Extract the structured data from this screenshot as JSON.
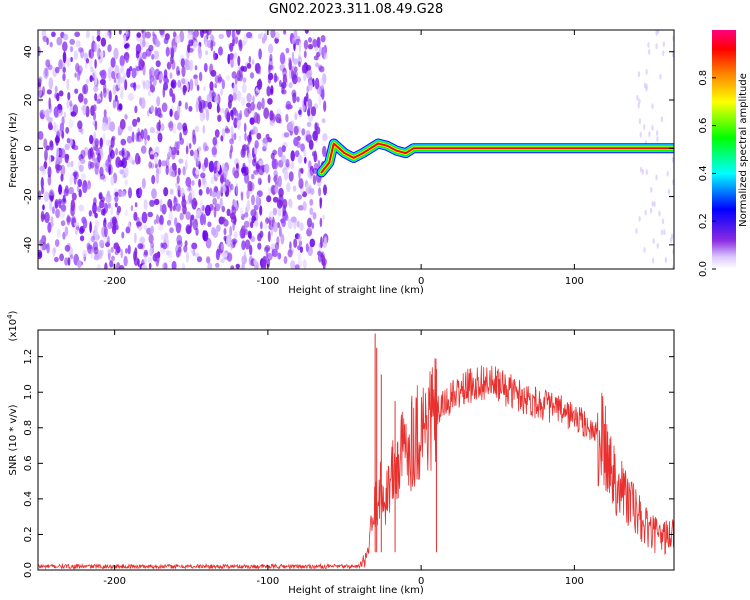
{
  "title": "GN02.2023.311.08.49.G28",
  "chart_data": [
    {
      "type": "heatmap",
      "xlabel": "Height of straight line (km)",
      "ylabel": "Frequency (Hz)",
      "xlim": [
        -250,
        165
      ],
      "ylim": [
        -50,
        49
      ],
      "xticks": [
        -200,
        -100,
        0,
        100
      ],
      "xtick_labels": [
        "-200",
        "-100",
        "0",
        "100"
      ],
      "yticks": [
        -40,
        -20,
        0,
        20,
        40
      ],
      "ytick_labels": [
        "-40",
        "-20",
        "0",
        "20",
        "40"
      ],
      "noise_region_x": [
        -250,
        -62
      ],
      "ridge": [
        {
          "x": -65,
          "y": -10
        },
        {
          "x": -60,
          "y": -6
        },
        {
          "x": -57,
          "y": 2
        },
        {
          "x": -50,
          "y": -2
        },
        {
          "x": -44,
          "y": -4
        },
        {
          "x": -38,
          "y": -2
        },
        {
          "x": -33,
          "y": 0
        },
        {
          "x": -28,
          "y": 2
        },
        {
          "x": -22,
          "y": 1
        },
        {
          "x": -16,
          "y": -1
        },
        {
          "x": -10,
          "y": -2
        },
        {
          "x": -5,
          "y": 0
        },
        {
          "x": 0,
          "y": 0
        },
        {
          "x": 60,
          "y": 0
        },
        {
          "x": 120,
          "y": 0
        },
        {
          "x": 165,
          "y": 0
        }
      ],
      "colorbar": {
        "label": "Normalized spectral amplitude",
        "range": [
          0,
          1
        ],
        "ticks": [
          0.0,
          0.2,
          0.4,
          0.6,
          0.8
        ],
        "tick_labels": [
          "0.0",
          "0.2",
          "0.4",
          "0.6",
          "0.8"
        ],
        "colors": [
          "#ffffff",
          "#dcc8ff",
          "#8a2be2",
          "#0000ff",
          "#00ffff",
          "#00ff00",
          "#ffff00",
          "#ff8000",
          "#ff0000",
          "#ff0080"
        ]
      }
    },
    {
      "type": "line",
      "xlabel": "Height of straight line (km)",
      "ylabel": "SNR (10 * v/v)",
      "y_exponent_label": "(x10",
      "y_exponent_power": "4",
      "y_exponent_close": ")",
      "xlim": [
        -250,
        165
      ],
      "ylim": [
        0,
        1.35
      ],
      "xticks": [
        -200,
        -100,
        0,
        100
      ],
      "xtick_labels": [
        "-200",
        "-100",
        "0",
        "100"
      ],
      "yticks": [
        0.0,
        0.2,
        0.4,
        0.6,
        0.8,
        1.0,
        1.2
      ],
      "ytick_labels": [
        "0.0",
        "0.2",
        "0.4",
        "0.6",
        "0.8",
        "1.0",
        "1.2"
      ],
      "color": "#e8302e",
      "envelope": [
        {
          "x": -250,
          "y": 0.02
        },
        {
          "x": -40,
          "y": 0.02
        },
        {
          "x": -36,
          "y": 0.05
        },
        {
          "x": -32,
          "y": 0.25
        },
        {
          "x": -28,
          "y": 0.45
        },
        {
          "x": -24,
          "y": 0.4
        },
        {
          "x": -20,
          "y": 0.5
        },
        {
          "x": -15,
          "y": 0.6
        },
        {
          "x": -10,
          "y": 0.7
        },
        {
          "x": 0,
          "y": 0.8
        },
        {
          "x": 10,
          "y": 0.88
        },
        {
          "x": 20,
          "y": 0.97
        },
        {
          "x": 30,
          "y": 1.03
        },
        {
          "x": 40,
          "y": 1.06
        },
        {
          "x": 50,
          "y": 1.04
        },
        {
          "x": 60,
          "y": 1.0
        },
        {
          "x": 70,
          "y": 0.96
        },
        {
          "x": 80,
          "y": 0.93
        },
        {
          "x": 90,
          "y": 0.9
        },
        {
          "x": 100,
          "y": 0.86
        },
        {
          "x": 110,
          "y": 0.8
        },
        {
          "x": 118,
          "y": 0.72
        },
        {
          "x": 125,
          "y": 0.55
        },
        {
          "x": 135,
          "y": 0.4
        },
        {
          "x": 145,
          "y": 0.25
        },
        {
          "x": 155,
          "y": 0.18
        },
        {
          "x": 165,
          "y": 0.2
        }
      ],
      "spikes": [
        {
          "x": -30,
          "y": 1.33
        },
        {
          "x": -29,
          "y": 1.25
        },
        {
          "x": -26,
          "y": 1.1
        },
        {
          "x": -17,
          "y": 0.95
        },
        {
          "x": 10,
          "y": 1.13
        }
      ]
    }
  ]
}
